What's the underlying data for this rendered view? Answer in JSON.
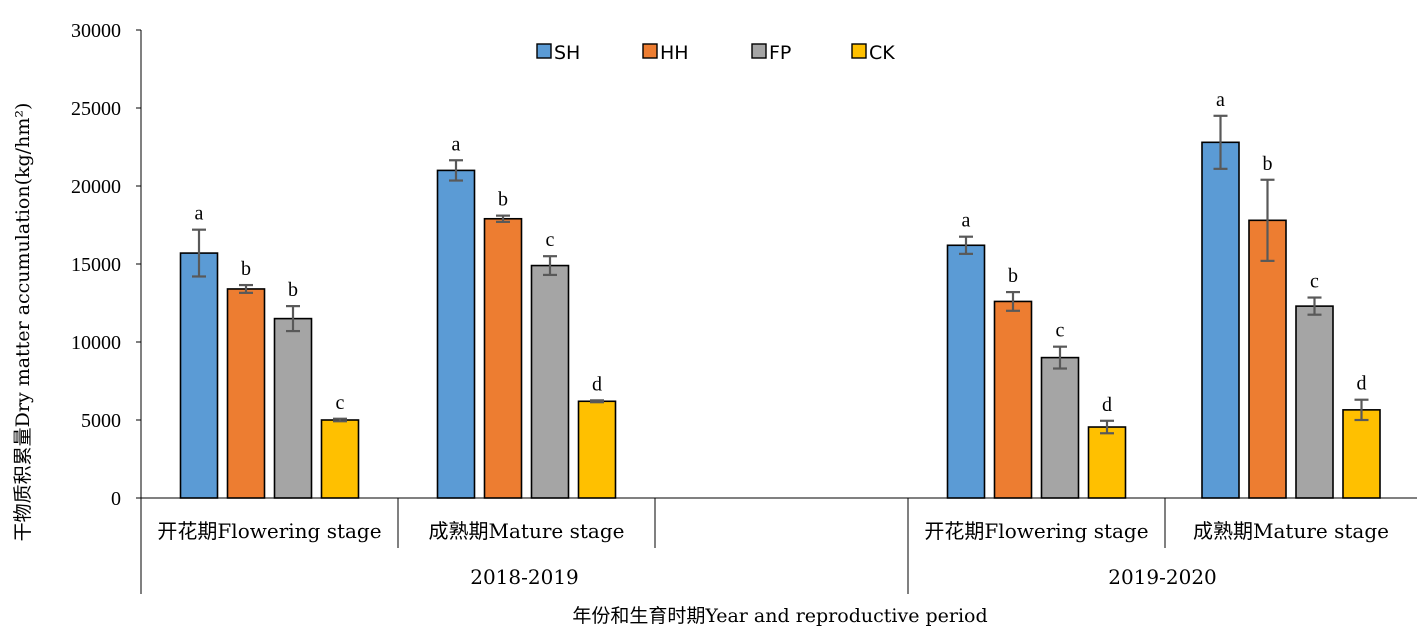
{
  "chart_data": {
    "type": "bar",
    "ylabel": "干物质积累量Dry matter accumulation(kg/hm²)",
    "xlabel": "年份和生育时期Year and reproductive period",
    "ylim": [
      0,
      30000
    ],
    "yticks": [
      "0",
      "5000",
      "10000",
      "15000",
      "20000",
      "25000",
      "30000"
    ],
    "legend_position": "top-center",
    "groups": [
      {
        "year": "2018-2019",
        "categories": [
          "开花期Flowering stage",
          "成熟期Mature stage"
        ]
      },
      {
        "year": "2019-2020",
        "categories": [
          "开花期Flowering stage",
          "成熟期Mature stage"
        ]
      }
    ],
    "categories": [
      "开花期Flowering stage",
      "成熟期Mature stage",
      "",
      "开花期Flowering stage",
      "成熟期Mature stage"
    ],
    "years": [
      "2018-2019",
      "2019-2020"
    ],
    "series": [
      {
        "name": "SH",
        "color": "#5b9bd5",
        "values": [
          15700,
          21000,
          null,
          16200,
          22800
        ],
        "errors": [
          1500,
          650,
          null,
          550,
          1700
        ],
        "labels": [
          "a",
          "a",
          null,
          "a",
          "a"
        ]
      },
      {
        "name": "HH",
        "color": "#ed7d31",
        "values": [
          13400,
          17900,
          null,
          12600,
          17800
        ],
        "errors": [
          250,
          200,
          null,
          600,
          2600
        ],
        "labels": [
          "b",
          "b",
          null,
          "b",
          "b"
        ]
      },
      {
        "name": "FP",
        "color": "#a5a5a5",
        "values": [
          11500,
          14900,
          null,
          9000,
          12300
        ],
        "errors": [
          800,
          600,
          null,
          700,
          550
        ],
        "labels": [
          "b",
          "c",
          null,
          "c",
          "c"
        ]
      },
      {
        "name": "CK",
        "color": "#ffc000",
        "values": [
          5000,
          6200,
          null,
          4550,
          5650
        ],
        "errors": [
          80,
          60,
          null,
          400,
          650
        ],
        "labels": [
          "c",
          "d",
          null,
          "d",
          "d"
        ]
      }
    ]
  }
}
